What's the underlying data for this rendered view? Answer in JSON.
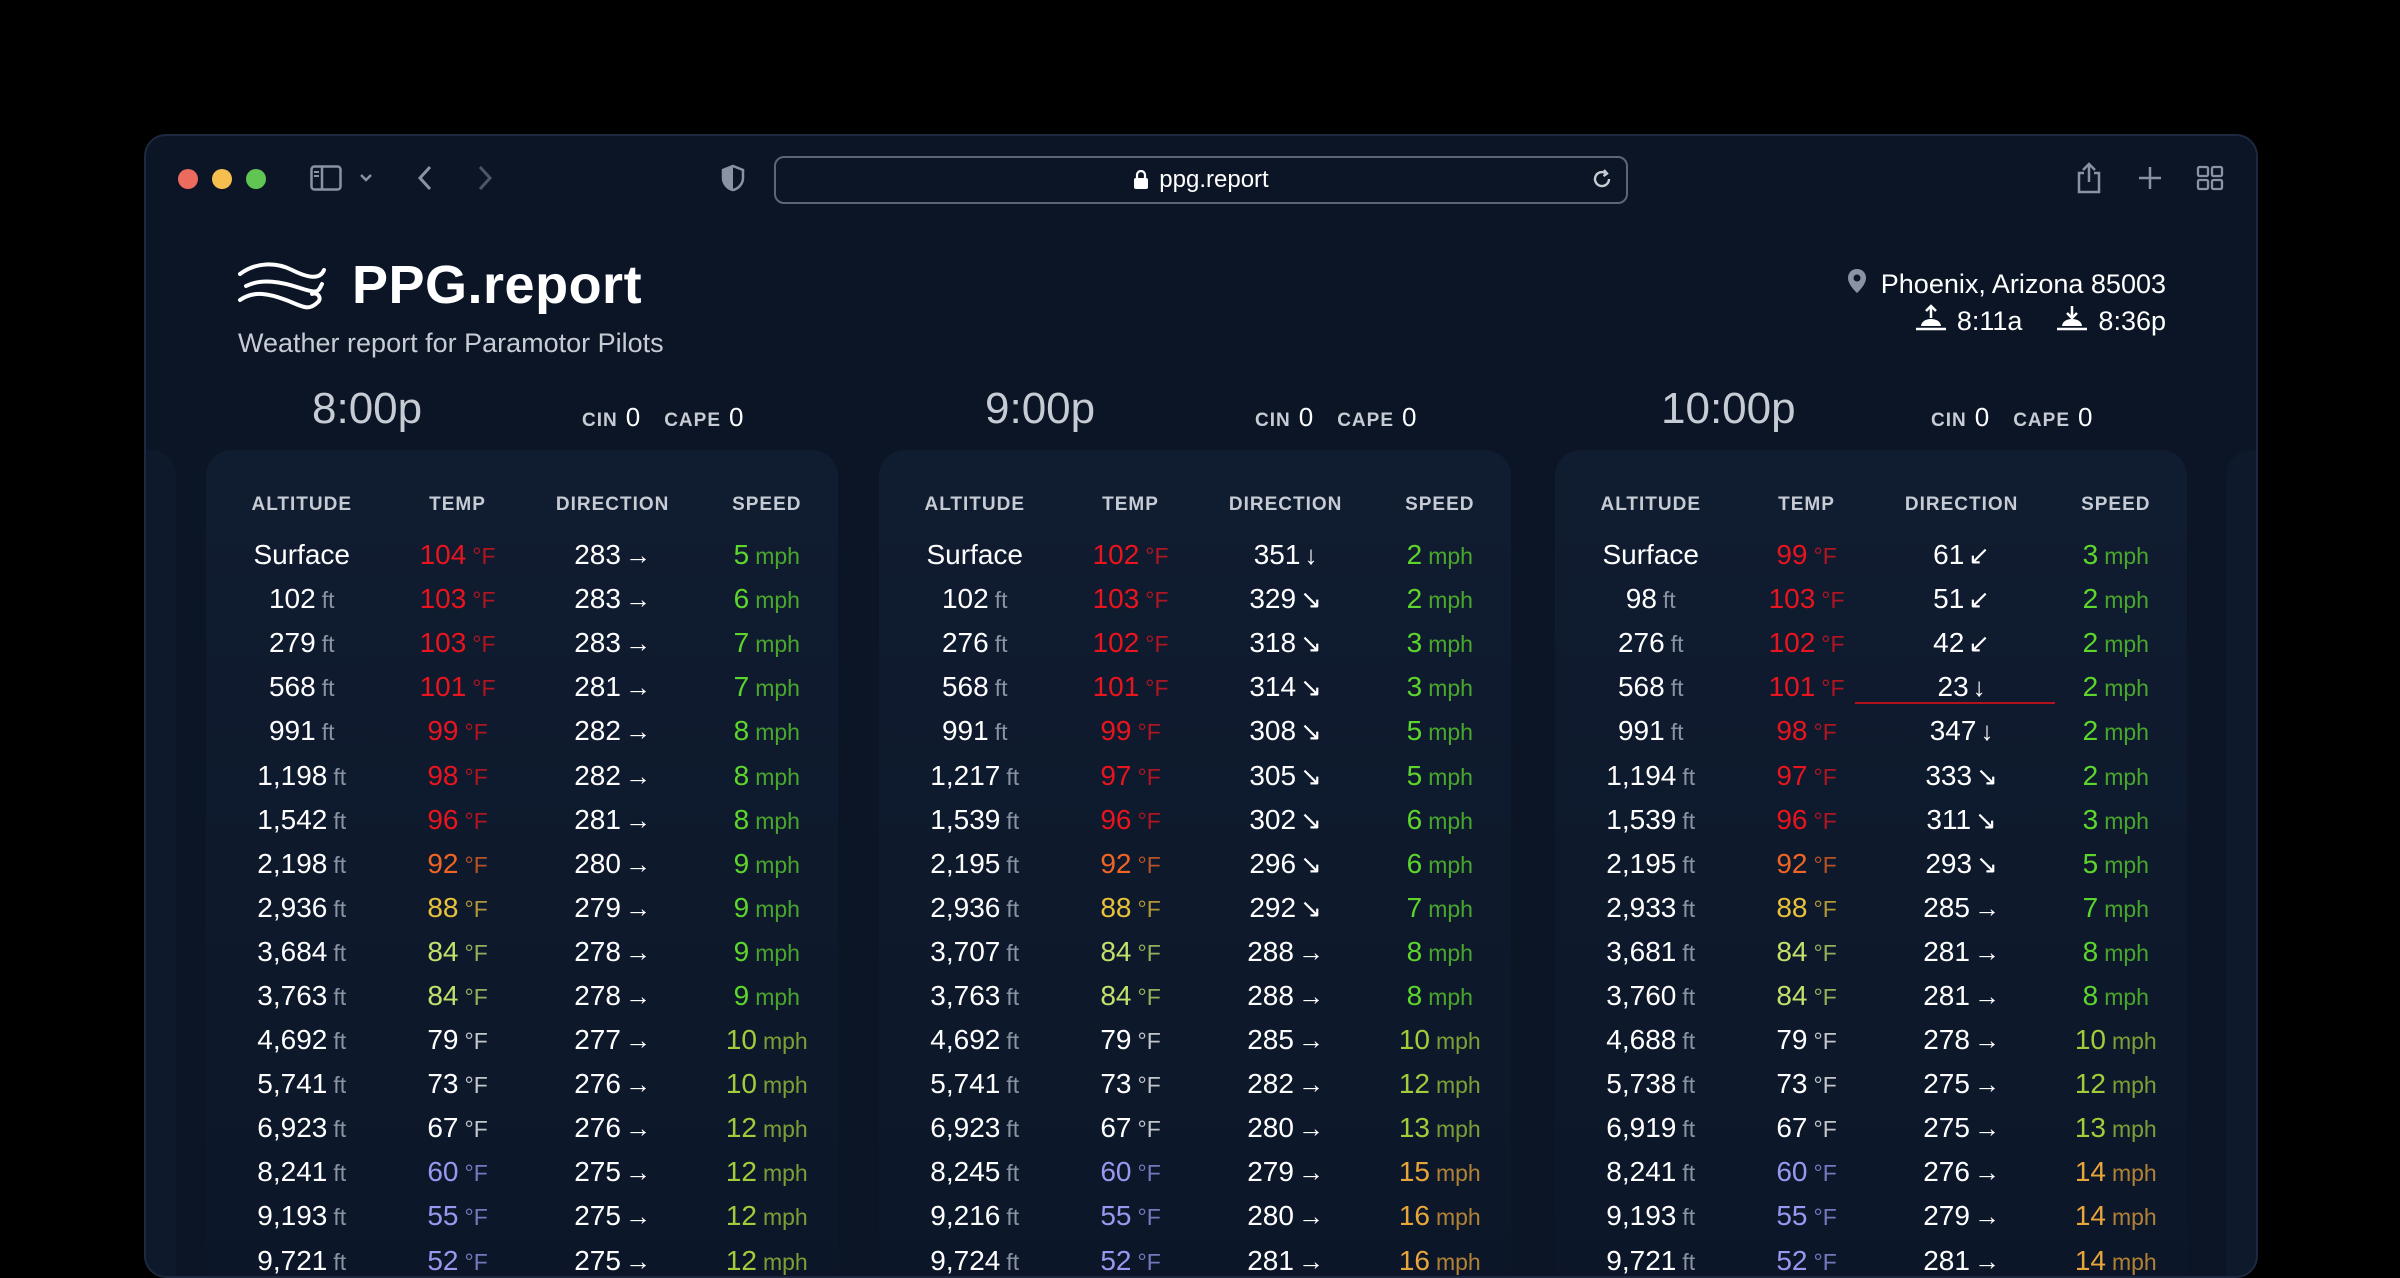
{
  "browser": {
    "url": "ppg.report"
  },
  "site": {
    "title": "PPG.report",
    "subtitle": "Weather report for Paramotor Pilots",
    "location": "Phoenix, Arizona 85003",
    "sunrise": "8:11a",
    "sunset": "8:36p"
  },
  "labels": {
    "cin": "CIN",
    "cape": "CAPE",
    "col_altitude": "ALTITUDE",
    "col_temp": "TEMP",
    "col_direction": "DIRECTION",
    "col_speed": "SPEED",
    "unit_ft": "ft",
    "unit_f": "°F",
    "unit_mph": "mph"
  },
  "colors": {
    "bg": "#0b1526",
    "temp_hot": "#e8141e",
    "temp_warm": "#f06424",
    "temp_mild": "#e8c23a",
    "temp_cool": "#c4e06a",
    "temp_neutral": "#ffffff",
    "temp_cold": "#9b97f0",
    "speed_low": "#5dd62c",
    "speed_mid": "#a2cc3a",
    "speed_high": "#e8a63a",
    "inversion_line": "#b3121d"
  },
  "forecasts": [
    {
      "time": "8:00p",
      "cin": "0",
      "cape": "0",
      "rows": [
        {
          "alt": "Surface",
          "temp": "104",
          "dir": "283",
          "arrow": "→",
          "speed": "5"
        },
        {
          "alt": "102",
          "temp": "103",
          "dir": "283",
          "arrow": "→",
          "speed": "6"
        },
        {
          "alt": "279",
          "temp": "103",
          "dir": "283",
          "arrow": "→",
          "speed": "7"
        },
        {
          "alt": "568",
          "temp": "101",
          "dir": "281",
          "arrow": "→",
          "speed": "7"
        },
        {
          "alt": "991",
          "temp": "99",
          "dir": "282",
          "arrow": "→",
          "speed": "8"
        },
        {
          "alt": "1,198",
          "temp": "98",
          "dir": "282",
          "arrow": "→",
          "speed": "8"
        },
        {
          "alt": "1,542",
          "temp": "96",
          "dir": "281",
          "arrow": "→",
          "speed": "8"
        },
        {
          "alt": "2,198",
          "temp": "92",
          "dir": "280",
          "arrow": "→",
          "speed": "9"
        },
        {
          "alt": "2,936",
          "temp": "88",
          "dir": "279",
          "arrow": "→",
          "speed": "9"
        },
        {
          "alt": "3,684",
          "temp": "84",
          "dir": "278",
          "arrow": "→",
          "speed": "9"
        },
        {
          "alt": "3,763",
          "temp": "84",
          "dir": "278",
          "arrow": "→",
          "speed": "9"
        },
        {
          "alt": "4,692",
          "temp": "79",
          "dir": "277",
          "arrow": "→",
          "speed": "10"
        },
        {
          "alt": "5,741",
          "temp": "73",
          "dir": "276",
          "arrow": "→",
          "speed": "10"
        },
        {
          "alt": "6,923",
          "temp": "67",
          "dir": "276",
          "arrow": "→",
          "speed": "12"
        },
        {
          "alt": "8,241",
          "temp": "60",
          "dir": "275",
          "arrow": "→",
          "speed": "12"
        },
        {
          "alt": "9,193",
          "temp": "55",
          "dir": "275",
          "arrow": "→",
          "speed": "12"
        },
        {
          "alt": "9,721",
          "temp": "52",
          "dir": "275",
          "arrow": "→",
          "speed": "12"
        }
      ]
    },
    {
      "time": "9:00p",
      "cin": "0",
      "cape": "0",
      "rows": [
        {
          "alt": "Surface",
          "temp": "102",
          "dir": "351",
          "arrow": "↓",
          "speed": "2"
        },
        {
          "alt": "102",
          "temp": "103",
          "dir": "329",
          "arrow": "↘",
          "speed": "2"
        },
        {
          "alt": "276",
          "temp": "102",
          "dir": "318",
          "arrow": "↘",
          "speed": "3"
        },
        {
          "alt": "568",
          "temp": "101",
          "dir": "314",
          "arrow": "↘",
          "speed": "3"
        },
        {
          "alt": "991",
          "temp": "99",
          "dir": "308",
          "arrow": "↘",
          "speed": "5"
        },
        {
          "alt": "1,217",
          "temp": "97",
          "dir": "305",
          "arrow": "↘",
          "speed": "5"
        },
        {
          "alt": "1,539",
          "temp": "96",
          "dir": "302",
          "arrow": "↘",
          "speed": "6"
        },
        {
          "alt": "2,195",
          "temp": "92",
          "dir": "296",
          "arrow": "↘",
          "speed": "6"
        },
        {
          "alt": "2,936",
          "temp": "88",
          "dir": "292",
          "arrow": "↘",
          "speed": "7"
        },
        {
          "alt": "3,707",
          "temp": "84",
          "dir": "288",
          "arrow": "→",
          "speed": "8"
        },
        {
          "alt": "3,763",
          "temp": "84",
          "dir": "288",
          "arrow": "→",
          "speed": "8"
        },
        {
          "alt": "4,692",
          "temp": "79",
          "dir": "285",
          "arrow": "→",
          "speed": "10"
        },
        {
          "alt": "5,741",
          "temp": "73",
          "dir": "282",
          "arrow": "→",
          "speed": "12"
        },
        {
          "alt": "6,923",
          "temp": "67",
          "dir": "280",
          "arrow": "→",
          "speed": "13"
        },
        {
          "alt": "8,245",
          "temp": "60",
          "dir": "279",
          "arrow": "→",
          "speed": "15"
        },
        {
          "alt": "9,216",
          "temp": "55",
          "dir": "280",
          "arrow": "→",
          "speed": "16"
        },
        {
          "alt": "9,724",
          "temp": "52",
          "dir": "281",
          "arrow": "→",
          "speed": "16"
        }
      ]
    },
    {
      "time": "10:00p",
      "cin": "0",
      "cape": "0",
      "rows": [
        {
          "alt": "Surface",
          "temp": "99",
          "dir": "61",
          "arrow": "↙",
          "speed": "3"
        },
        {
          "alt": "98",
          "temp": "103",
          "dir": "51",
          "arrow": "↙",
          "speed": "2"
        },
        {
          "alt": "276",
          "temp": "102",
          "dir": "42",
          "arrow": "↙",
          "speed": "2"
        },
        {
          "alt": "568",
          "temp": "101",
          "dir": "23",
          "arrow": "↓",
          "speed": "2"
        },
        {
          "alt": "991",
          "temp": "98",
          "dir": "347",
          "arrow": "↓",
          "speed": "2"
        },
        {
          "alt": "1,194",
          "temp": "97",
          "dir": "333",
          "arrow": "↘",
          "speed": "2"
        },
        {
          "alt": "1,539",
          "temp": "96",
          "dir": "311",
          "arrow": "↘",
          "speed": "3"
        },
        {
          "alt": "2,195",
          "temp": "92",
          "dir": "293",
          "arrow": "↘",
          "speed": "5"
        },
        {
          "alt": "2,933",
          "temp": "88",
          "dir": "285",
          "arrow": "→",
          "speed": "7"
        },
        {
          "alt": "3,681",
          "temp": "84",
          "dir": "281",
          "arrow": "→",
          "speed": "8"
        },
        {
          "alt": "3,760",
          "temp": "84",
          "dir": "281",
          "arrow": "→",
          "speed": "8"
        },
        {
          "alt": "4,688",
          "temp": "79",
          "dir": "278",
          "arrow": "→",
          "speed": "10"
        },
        {
          "alt": "5,738",
          "temp": "73",
          "dir": "275",
          "arrow": "→",
          "speed": "12"
        },
        {
          "alt": "6,919",
          "temp": "67",
          "dir": "275",
          "arrow": "→",
          "speed": "13"
        },
        {
          "alt": "8,241",
          "temp": "60",
          "dir": "276",
          "arrow": "→",
          "speed": "14"
        },
        {
          "alt": "9,193",
          "temp": "55",
          "dir": "279",
          "arrow": "→",
          "speed": "14"
        },
        {
          "alt": "9,721",
          "temp": "52",
          "dir": "281",
          "arrow": "→",
          "speed": "14"
        }
      ]
    }
  ]
}
